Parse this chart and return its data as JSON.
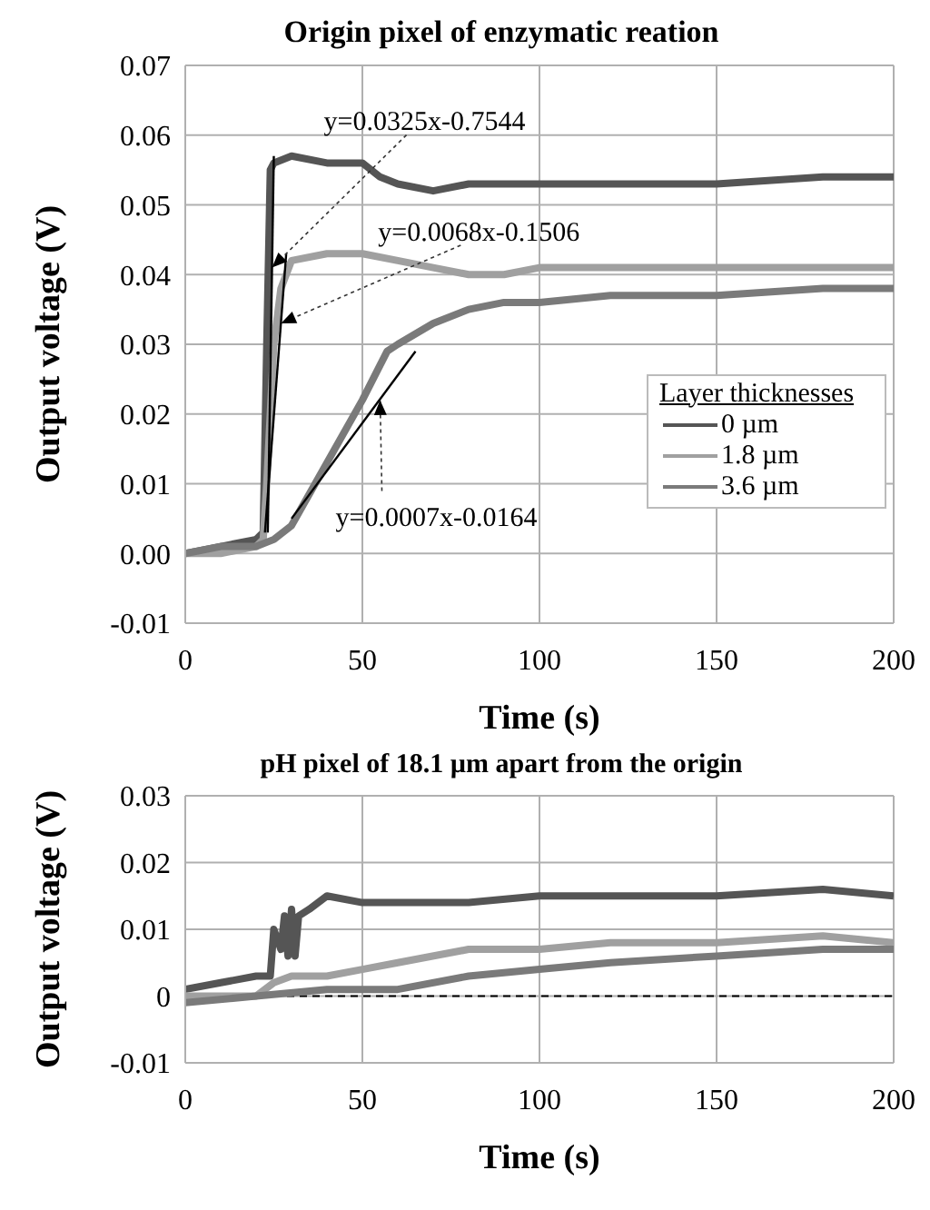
{
  "chart_data": [
    {
      "type": "line",
      "title": "Origin pixel of enzymatic reation",
      "xlabel": "Time (s)",
      "ylabel": "Output voltage (V)",
      "legend_title": "Layer thicknesses",
      "legend": "right",
      "xlim": [
        0,
        200
      ],
      "xticks": [
        0,
        50,
        100,
        150,
        200
      ],
      "ylim": [
        -0.01,
        0.07
      ],
      "yticks": [
        -0.01,
        {
          "value": 0,
          "label": "0.00"
        },
        0.01,
        0.02,
        0.03,
        0.04,
        0.05,
        0.06,
        0.07
      ],
      "grid": true,
      "marker": "none",
      "line_style": "solid",
      "series": [
        {
          "name": "0 µm",
          "color": "#555555",
          "x": [
            0,
            10,
            20,
            22,
            23,
            24,
            25,
            30,
            40,
            50,
            55,
            60,
            70,
            80,
            100,
            120,
            150,
            180,
            200
          ],
          "values": [
            0,
            0.001,
            0.002,
            0.003,
            0.03,
            0.055,
            0.056,
            0.057,
            0.056,
            0.056,
            0.054,
            0.053,
            0.052,
            0.053,
            0.053,
            0.053,
            0.053,
            0.054,
            0.054
          ]
        },
        {
          "name": "1.8 µm",
          "color": "#a0a0a0",
          "x": [
            0,
            10,
            20,
            22,
            23,
            25,
            27,
            30,
            40,
            50,
            60,
            70,
            80,
            90,
            100,
            120,
            150,
            180,
            200
          ],
          "values": [
            0,
            0,
            0.001,
            0.002,
            0.01,
            0.03,
            0.038,
            0.042,
            0.043,
            0.043,
            0.042,
            0.041,
            0.04,
            0.04,
            0.041,
            0.041,
            0.041,
            0.041,
            0.041
          ]
        },
        {
          "name": "3.6 µm",
          "color": "#7a7a7a",
          "x": [
            0,
            10,
            20,
            25,
            30,
            40,
            50,
            57,
            60,
            70,
            80,
            90,
            100,
            120,
            150,
            180,
            200
          ],
          "values": [
            0,
            0.001,
            0.001,
            0.002,
            0.004,
            0.013,
            0.022,
            0.029,
            0.03,
            0.033,
            0.035,
            0.036,
            0.036,
            0.037,
            0.037,
            0.038,
            0.038
          ]
        },
        {
          "type": "line",
          "color": "#000000",
          "x": [
            23.3,
            25
          ],
          "values": [
            0.003,
            0.057
          ]
        },
        {
          "type": "line",
          "color": "#000000",
          "x": [
            22.5,
            28.5
          ],
          "values": [
            0.003,
            0.043
          ]
        },
        {
          "type": "line",
          "color": "#000000",
          "x": [
            30,
            65
          ],
          "values": [
            0.005,
            0.029
          ]
        }
      ],
      "annotations": [
        {
          "text": "y=0.0325x-0.7544",
          "x": 24.5,
          "y": 0.041
        },
        {
          "text": "y=0.0068x-0.1506",
          "x": 27,
          "y": 0.033
        },
        {
          "text": "y=0.0007x-0.0164",
          "x": 55,
          "y": 0.022
        }
      ]
    },
    {
      "type": "line",
      "title": "pH pixel of 18.1 µm apart from the origin",
      "xlabel": "Time (s)",
      "ylabel": "Output voltage (V)",
      "xlim": [
        0,
        200
      ],
      "xticks": [
        0,
        50,
        100,
        150,
        200
      ],
      "ylim": [
        -0.01,
        0.03
      ],
      "yticks": [
        -0.01,
        0,
        0.01,
        0.02,
        0.03
      ],
      "grid": true,
      "marker": "none",
      "line_style": "solid",
      "ref_lines": [
        {
          "axis": "y",
          "value": 0,
          "color": "#000000",
          "line_style": "dashed"
        }
      ],
      "series": [
        {
          "color": "#555555",
          "x": [
            0,
            10,
            20,
            24,
            25,
            27,
            28,
            29,
            30,
            31,
            32,
            35,
            40,
            50,
            60,
            80,
            100,
            120,
            150,
            180,
            200
          ],
          "values": [
            0.001,
            0.002,
            0.003,
            0.003,
            0.01,
            0.007,
            0.012,
            0.006,
            0.013,
            0.006,
            0.012,
            0.013,
            0.015,
            0.014,
            0.014,
            0.014,
            0.015,
            0.015,
            0.015,
            0.016,
            0.015
          ]
        },
        {
          "color": "#a0a0a0",
          "x": [
            0,
            20,
            25,
            30,
            40,
            50,
            60,
            80,
            100,
            120,
            150,
            180,
            200
          ],
          "values": [
            0,
            0,
            0.002,
            0.003,
            0.003,
            0.004,
            0.005,
            0.007,
            0.007,
            0.008,
            0.008,
            0.009,
            0.008
          ]
        },
        {
          "color": "#7a7a7a",
          "x": [
            0,
            20,
            40,
            60,
            80,
            100,
            120,
            150,
            180,
            200
          ],
          "values": [
            -0.001,
            0,
            0.001,
            0.001,
            0.003,
            0.004,
            0.005,
            0.006,
            0.007,
            0.007
          ]
        }
      ]
    }
  ]
}
